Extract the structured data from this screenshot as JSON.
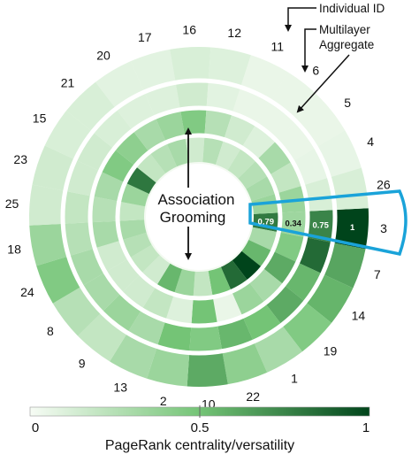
{
  "legend_labels": {
    "individual_id": "Individual ID",
    "multilayer_aggregate": "Multilayer Aggregate",
    "multilayer_line1": "Multilayer",
    "multilayer_line2": "Aggregate"
  },
  "center_labels": {
    "association": "Association",
    "grooming": "Grooming"
  },
  "individual_ids": [
    "3",
    "7",
    "14",
    "19",
    "1",
    "22",
    "10",
    "2",
    "13",
    "9",
    "8",
    "24",
    "18",
    "25",
    "23",
    "15",
    "21",
    "20",
    "17",
    "16",
    "12",
    "11",
    "6",
    "5",
    "4",
    "26"
  ],
  "highlight": {
    "id": "3",
    "values": [
      "0.79",
      "0.34",
      "0.75",
      "1"
    ]
  },
  "colorbar": {
    "min_label": "0",
    "mid_label": "0.5",
    "max_label": "1",
    "title": "PageRank centrality/versatility",
    "low_color": "#f7fcf5",
    "high_color": "#00441b"
  },
  "accent_color": "#1aa3d9",
  "rings": {
    "outer": [
      1.0,
      0.62,
      0.56,
      0.45,
      0.3,
      0.4,
      0.6,
      0.35,
      0.3,
      0.2,
      0.25,
      0.45,
      0.35,
      0.15,
      0.15,
      0.12,
      0.12,
      0.08,
      0.08,
      0.12,
      0.1,
      0.05,
      0.05,
      0.05,
      0.06,
      0.12
    ],
    "aggregate": [
      0.75,
      0.85,
      0.55,
      0.6,
      0.5,
      0.55,
      0.45,
      0.5,
      0.3,
      0.35,
      0.3,
      0.3,
      0.25,
      0.2,
      0.15,
      0.15,
      0.12,
      0.1,
      0.1,
      0.15,
      0.08,
      0.05,
      0.05,
      0.05,
      0.06,
      0.12
    ],
    "association": [
      0.34,
      0.45,
      0.6,
      0.3,
      0.35,
      0.05,
      0.5,
      0.1,
      0.2,
      0.15,
      0.15,
      0.15,
      0.3,
      0.25,
      0.3,
      0.45,
      0.4,
      0.3,
      0.35,
      0.45,
      0.25,
      0.15,
      0.1,
      0.3,
      0.2,
      0.35
    ],
    "grooming": [
      0.79,
      0.3,
      0.55,
      1.0,
      0.85,
      0.5,
      0.2,
      0.35,
      0.55,
      0.15,
      0.2,
      0.25,
      0.3,
      0.2,
      0.35,
      0.8,
      0.2,
      0.25,
      0.3,
      0.15,
      0.25,
      0.15,
      0.2,
      0.25,
      0.3,
      0.35
    ]
  }
}
